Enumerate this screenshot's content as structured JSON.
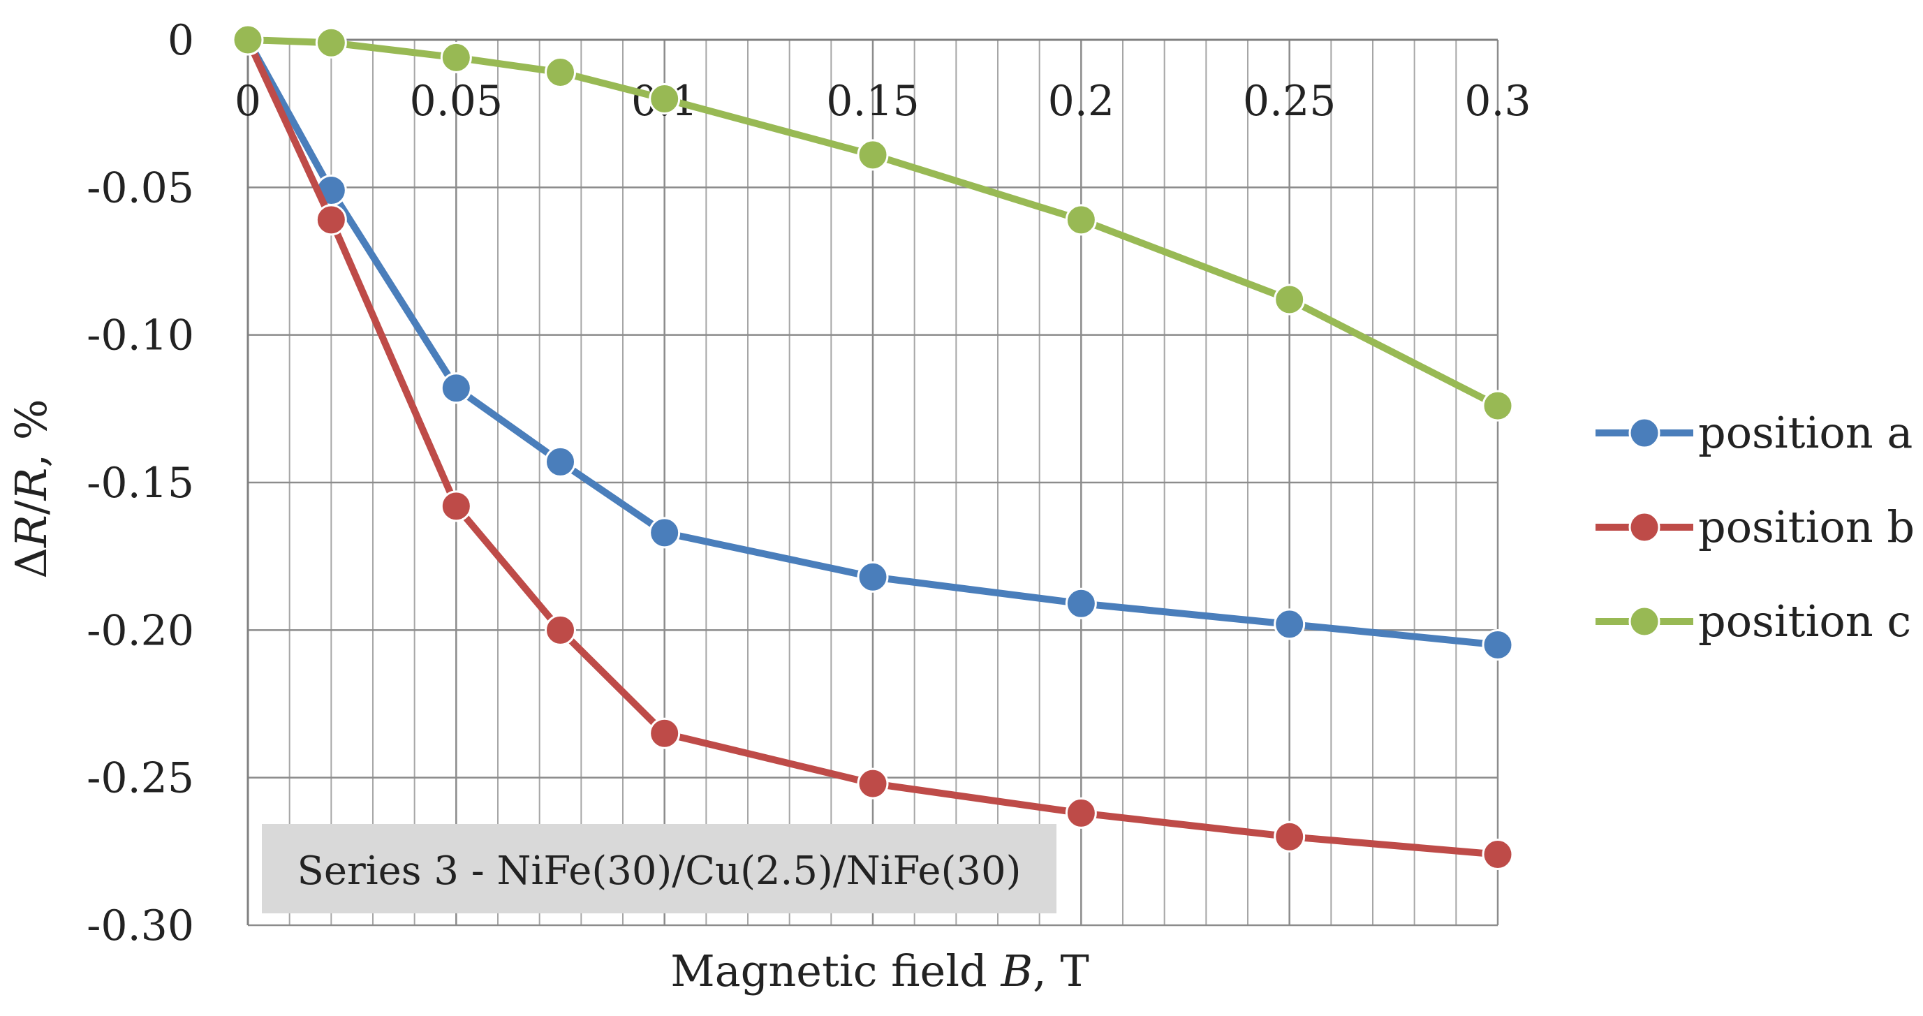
{
  "chart_data": {
    "type": "line",
    "title": "",
    "xlabel": "Magnetic field B, T",
    "xlabel_parts": [
      "Magnetic field ",
      "B",
      ", T"
    ],
    "ylabel": "ΔR/R, %",
    "ylabel_parts": [
      "Δ",
      "R",
      "/",
      "R",
      ", %"
    ],
    "xlim": [
      0,
      0.3
    ],
    "ylim": [
      -0.3,
      0
    ],
    "x_ticks": [
      {
        "value": 0,
        "label": "0"
      },
      {
        "value": 0.05,
        "label": "0.05"
      },
      {
        "value": 0.1,
        "label": "0.1"
      },
      {
        "value": 0.15,
        "label": "0.15"
      },
      {
        "value": 0.2,
        "label": "0.2"
      },
      {
        "value": 0.25,
        "label": "0.25"
      },
      {
        "value": 0.3,
        "label": "0.3"
      }
    ],
    "y_ticks": [
      {
        "value": 0,
        "label": "0"
      },
      {
        "value": -0.05,
        "label": "-0.05"
      },
      {
        "value": -0.1,
        "label": "-0.10"
      },
      {
        "value": -0.15,
        "label": "-0.15"
      },
      {
        "value": -0.2,
        "label": "-0.20"
      },
      {
        "value": -0.25,
        "label": "-0.25"
      },
      {
        "value": -0.3,
        "label": "-0.30"
      }
    ],
    "minor_x_step": 0.01,
    "grid": true,
    "legend_position": "right",
    "annotation": "Series 3 - NiFe(30)/Cu(2.5)/NiFe(30)",
    "x": [
      0,
      0.02,
      0.05,
      0.075,
      0.1,
      0.15,
      0.2,
      0.25,
      0.3
    ],
    "series": [
      {
        "name": "position a",
        "color": "#4A7EBB",
        "values": [
          0,
          -0.051,
          -0.118,
          -0.143,
          -0.167,
          -0.182,
          -0.191,
          -0.198,
          -0.205
        ]
      },
      {
        "name": "position b",
        "color": "#BE4B48",
        "values": [
          0,
          -0.061,
          -0.158,
          -0.2,
          -0.235,
          -0.252,
          -0.262,
          -0.27,
          -0.276
        ]
      },
      {
        "name": "position c",
        "color": "#98B954",
        "values": [
          0,
          -0.001,
          -0.006,
          -0.011,
          -0.02,
          -0.039,
          -0.061,
          -0.088,
          -0.124
        ]
      }
    ]
  }
}
